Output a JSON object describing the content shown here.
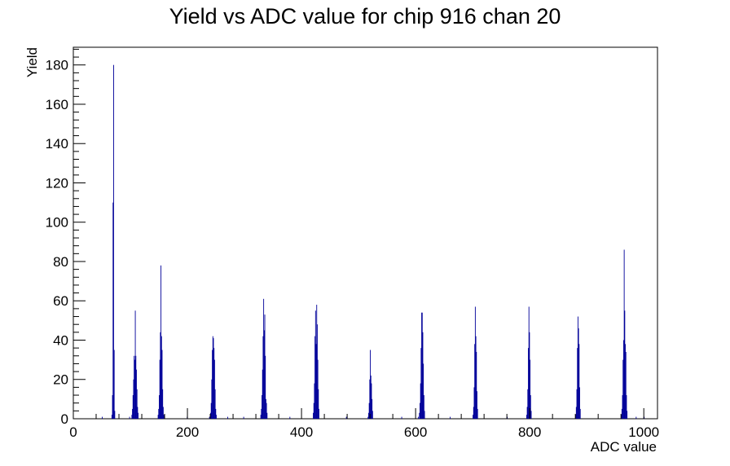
{
  "chart_data": {
    "type": "bar",
    "title": "Yield vs ADC value for chip 916 chan 20",
    "xlabel": "ADC value",
    "ylabel": "Yield",
    "xlim": [
      0,
      1024
    ],
    "ylim": [
      0,
      189
    ],
    "x_ticks": [
      0,
      200,
      400,
      600,
      800,
      1000
    ],
    "y_ticks": [
      0,
      20,
      40,
      60,
      80,
      100,
      120,
      140,
      160,
      180
    ],
    "grid": false,
    "legend": "none",
    "bin_width": 1,
    "series": [
      {
        "color": "#000099",
        "bins": [
          [
            50,
            1
          ],
          [
            67,
            2
          ],
          [
            68,
            12
          ],
          [
            69,
            110
          ],
          [
            70,
            180
          ],
          [
            71,
            35
          ],
          [
            72,
            4
          ],
          [
            98,
            1
          ],
          [
            102,
            2
          ],
          [
            103,
            5
          ],
          [
            104,
            12
          ],
          [
            105,
            20
          ],
          [
            106,
            32
          ],
          [
            107,
            30
          ],
          [
            108,
            55
          ],
          [
            109,
            32
          ],
          [
            110,
            25
          ],
          [
            111,
            15
          ],
          [
            112,
            6
          ],
          [
            113,
            3
          ],
          [
            148,
            2
          ],
          [
            149,
            5
          ],
          [
            150,
            12
          ],
          [
            151,
            30
          ],
          [
            152,
            44
          ],
          [
            153,
            78
          ],
          [
            154,
            42
          ],
          [
            155,
            35
          ],
          [
            156,
            15
          ],
          [
            157,
            6
          ],
          [
            158,
            2
          ],
          [
            199,
            1
          ],
          [
            238,
            1
          ],
          [
            240,
            3
          ],
          [
            241,
            8
          ],
          [
            242,
            20
          ],
          [
            243,
            35
          ],
          [
            244,
            42
          ],
          [
            245,
            41
          ],
          [
            246,
            36
          ],
          [
            247,
            30
          ],
          [
            248,
            15
          ],
          [
            249,
            5
          ],
          [
            250,
            2
          ],
          [
            270,
            1
          ],
          [
            298,
            1
          ],
          [
            328,
            2
          ],
          [
            329,
            5
          ],
          [
            330,
            12
          ],
          [
            331,
            25
          ],
          [
            332,
            42
          ],
          [
            333,
            61
          ],
          [
            334,
            45
          ],
          [
            335,
            53
          ],
          [
            336,
            32
          ],
          [
            337,
            10
          ],
          [
            338,
            8
          ],
          [
            339,
            3
          ],
          [
            379,
            1
          ],
          [
            420,
            3
          ],
          [
            421,
            8
          ],
          [
            422,
            18
          ],
          [
            423,
            42
          ],
          [
            424,
            55
          ],
          [
            425,
            38
          ],
          [
            426,
            58
          ],
          [
            427,
            48
          ],
          [
            428,
            30
          ],
          [
            429,
            15
          ],
          [
            430,
            5
          ],
          [
            478,
            1
          ],
          [
            516,
            1
          ],
          [
            517,
            3
          ],
          [
            518,
            8
          ],
          [
            519,
            20
          ],
          [
            520,
            35
          ],
          [
            521,
            22
          ],
          [
            522,
            18
          ],
          [
            523,
            10
          ],
          [
            524,
            4
          ],
          [
            575,
            1
          ],
          [
            604,
            1
          ],
          [
            606,
            3
          ],
          [
            607,
            8
          ],
          [
            608,
            18
          ],
          [
            609,
            36
          ],
          [
            610,
            54
          ],
          [
            611,
            54
          ],
          [
            612,
            44
          ],
          [
            613,
            28
          ],
          [
            614,
            12
          ],
          [
            615,
            4
          ],
          [
            660,
            1
          ],
          [
            700,
            2
          ],
          [
            701,
            6
          ],
          [
            702,
            16
          ],
          [
            703,
            38
          ],
          [
            704,
            57
          ],
          [
            705,
            42
          ],
          [
            706,
            34
          ],
          [
            707,
            14
          ],
          [
            708,
            5
          ],
          [
            760,
            1
          ],
          [
            794,
            2
          ],
          [
            795,
            6
          ],
          [
            796,
            15
          ],
          [
            797,
            36
          ],
          [
            798,
            57
          ],
          [
            799,
            44
          ],
          [
            800,
            30
          ],
          [
            801,
            12
          ],
          [
            802,
            4
          ],
          [
            880,
            2
          ],
          [
            881,
            6
          ],
          [
            882,
            15
          ],
          [
            883,
            36
          ],
          [
            884,
            52
          ],
          [
            885,
            46
          ],
          [
            886,
            38
          ],
          [
            887,
            16
          ],
          [
            888,
            5
          ],
          [
            960,
            2
          ],
          [
            961,
            5
          ],
          [
            962,
            12
          ],
          [
            963,
            30
          ],
          [
            964,
            40
          ],
          [
            965,
            86
          ],
          [
            966,
            55
          ],
          [
            967,
            38
          ],
          [
            968,
            34
          ],
          [
            969,
            12
          ],
          [
            970,
            4
          ],
          [
            986,
            1
          ],
          [
            1000,
            1
          ]
        ]
      }
    ]
  }
}
